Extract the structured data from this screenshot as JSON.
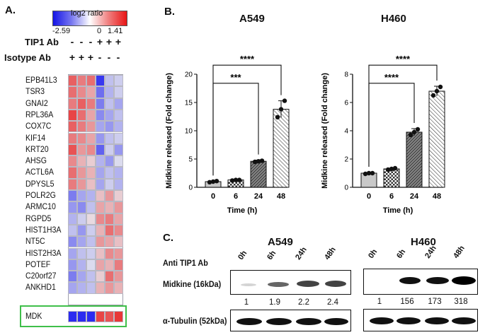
{
  "panels": {
    "a": "A.",
    "b": "B.",
    "c": "C."
  },
  "heatmap": {
    "legend_title": "log2 ratio",
    "legend_min": "-2.59",
    "legend_mid": "0",
    "legend_max": "1.41",
    "tip1_label": "TIP1 Ab",
    "isotype_label": "Isotype Ab",
    "tip1_signs": [
      "-",
      "-",
      "-",
      "+",
      "+",
      "+"
    ],
    "isotype_signs": [
      "+",
      "+",
      "+",
      "-",
      "-",
      "-"
    ],
    "genes": [
      "EPB41L3",
      "TSR3",
      "GNAI2",
      "RPL36A",
      "COX7C",
      "KIF14",
      "KRT20",
      "AHSG",
      "ACTL6A",
      "DPYSL5",
      "POLR2G",
      "ARMC10",
      "RGPD5",
      "HIST1H3A",
      "NT5C",
      "HIST2H3A",
      "POTEF",
      "C20orf27",
      "ANKHD1",
      "MDK"
    ],
    "highlighted_gene": "MDK",
    "color_low": "#2b2bf0",
    "color_mid": "#e8e8ee",
    "color_high": "#e82a2a",
    "values": [
      [
        1.0,
        0.8,
        0.9,
        -1.3,
        -0.3,
        -0.2
      ],
      [
        0.9,
        0.7,
        0.5,
        -0.9,
        -0.4,
        -0.2
      ],
      [
        0.8,
        1.0,
        0.8,
        -0.8,
        -0.3,
        -0.5
      ],
      [
        1.2,
        0.9,
        0.5,
        -0.7,
        -0.5,
        -0.3
      ],
      [
        1.0,
        0.8,
        0.6,
        -0.5,
        -0.6,
        -0.4
      ],
      [
        0.8,
        0.7,
        0.5,
        -0.6,
        -0.3,
        -0.2
      ],
      [
        1.1,
        0.6,
        0.7,
        -1.0,
        -0.2,
        -0.6
      ],
      [
        0.7,
        0.4,
        0.2,
        -0.4,
        -0.6,
        -0.1
      ],
      [
        0.9,
        0.6,
        0.4,
        -0.5,
        -0.3,
        -0.4
      ],
      [
        0.8,
        0.6,
        0.3,
        -0.5,
        -0.2,
        -0.4
      ],
      [
        -0.8,
        -0.5,
        -0.4,
        0.3,
        0.6,
        0.2
      ],
      [
        -0.6,
        -0.7,
        -0.3,
        0.5,
        0.4,
        0.6
      ],
      [
        -0.4,
        -0.2,
        0.1,
        0.7,
        0.8,
        0.5
      ],
      [
        -0.3,
        -0.6,
        -0.2,
        0.4,
        0.9,
        0.7
      ],
      [
        -0.7,
        -0.5,
        -0.3,
        0.6,
        0.5,
        0.3
      ],
      [
        -0.5,
        -0.3,
        -0.2,
        0.3,
        0.7,
        0.6
      ],
      [
        -0.6,
        -0.4,
        -0.1,
        0.5,
        0.4,
        0.8
      ],
      [
        -0.8,
        -0.5,
        -0.3,
        0.2,
        0.9,
        0.6
      ],
      [
        -0.5,
        -0.4,
        -0.3,
        0.4,
        0.6,
        0.4
      ],
      [
        -2.0,
        -2.2,
        -2.1,
        1.2,
        1.1,
        1.3
      ]
    ]
  },
  "chart_data": [
    {
      "type": "bar",
      "title": "A549",
      "xlabel": "Time (h)",
      "ylabel": "Midkine released (Fold change)",
      "categories": [
        "0",
        "6",
        "24",
        "48"
      ],
      "values": [
        1.0,
        1.3,
        4.6,
        13.8
      ],
      "errors": [
        0.1,
        0.1,
        0.2,
        1.5
      ],
      "points": [
        [
          0.9,
          1.0,
          1.1
        ],
        [
          1.2,
          1.3,
          1.3
        ],
        [
          4.5,
          4.6,
          4.7
        ],
        [
          12.4,
          13.8,
          15.3
        ]
      ],
      "ylim": [
        0,
        20
      ],
      "yticks": [
        "0",
        "5",
        "10",
        "15",
        "20"
      ],
      "significance": [
        {
          "from": "0",
          "to": "24",
          "label": "***"
        },
        {
          "from": "0",
          "to": "48",
          "label": "****"
        }
      ]
    },
    {
      "type": "bar",
      "title": "H460",
      "xlabel": "Time (h)",
      "ylabel": "Midkine released (Fold change)",
      "categories": [
        "0",
        "6",
        "24",
        "48"
      ],
      "values": [
        1.0,
        1.3,
        3.9,
        6.8
      ],
      "errors": [
        0.05,
        0.05,
        0.25,
        0.35
      ],
      "points": [
        [
          0.95,
          1.0,
          1.0
        ],
        [
          1.25,
          1.3,
          1.35
        ],
        [
          3.7,
          3.9,
          4.1
        ],
        [
          6.5,
          6.8,
          7.1
        ]
      ],
      "ylim": [
        0,
        8
      ],
      "yticks": [
        "0",
        "2",
        "4",
        "6",
        "8"
      ],
      "significance": [
        {
          "from": "0",
          "to": "24",
          "label": "****"
        },
        {
          "from": "0",
          "to": "48",
          "label": "****"
        }
      ]
    }
  ],
  "blot": {
    "a549_title": "A549",
    "h460_title": "H460",
    "treatment_label": "Anti  TIP1 Ab",
    "timepoints": [
      "0h",
      "6h",
      "24h",
      "48h"
    ],
    "midkine_label": "Midkine (16kDa)",
    "tubulin_label": "α-Tubulin (52kDa)",
    "a549_quant": [
      "1",
      "1.9",
      "2.2",
      "2.4"
    ],
    "h460_quant": [
      "1",
      "156",
      "173",
      "318"
    ]
  }
}
